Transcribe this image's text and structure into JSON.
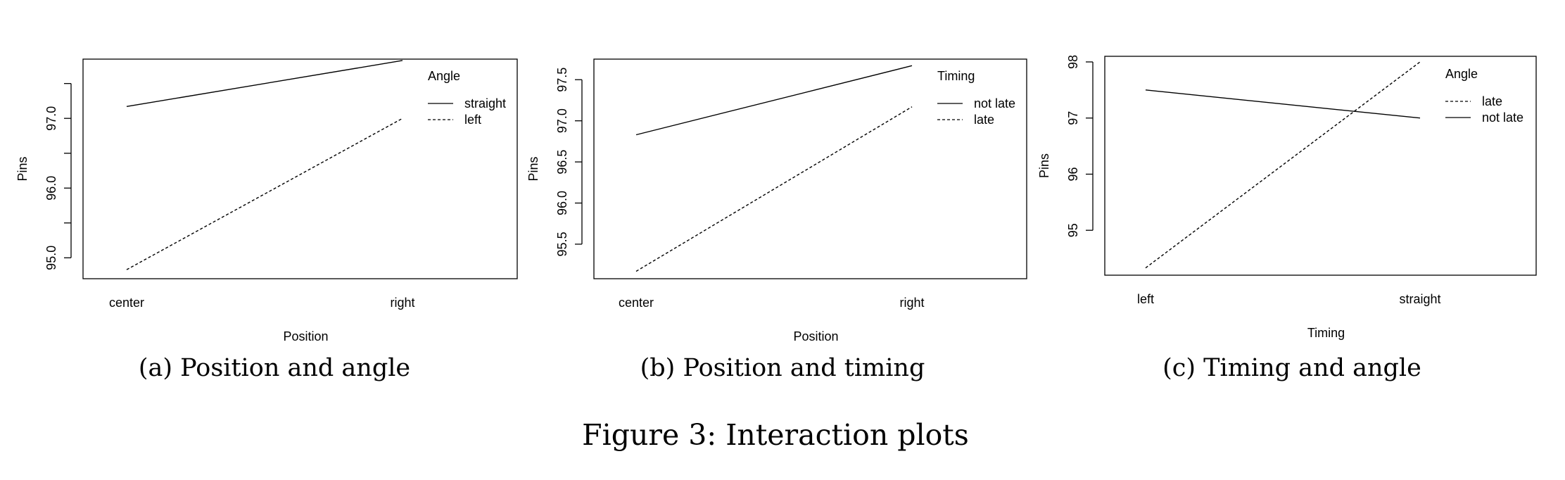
{
  "figure_caption": "Figure 3: Interaction plots",
  "chart_data": [
    {
      "type": "line",
      "caption": "(a) Position and angle",
      "xlabel": "Position",
      "ylabel": "Pins",
      "categories": [
        "center",
        "right"
      ],
      "ylim": [
        94.7,
        97.85
      ],
      "yticks": [
        95.0,
        96.0,
        97.0
      ],
      "ytick_labels": [
        "95.0",
        "96.0",
        "97.0"
      ],
      "yticks_minor": [
        95.5,
        96.5,
        97.5
      ],
      "legend_title": "Angle",
      "legend_position": "top-right",
      "series": [
        {
          "name": "straight",
          "style": "solid",
          "values": [
            97.17,
            97.83
          ]
        },
        {
          "name": "left",
          "style": "dashed",
          "values": [
            94.83,
            97.0
          ]
        }
      ]
    },
    {
      "type": "line",
      "caption": "(b) Position and timing",
      "xlabel": "Position",
      "ylabel": "Pins",
      "categories": [
        "center",
        "right"
      ],
      "ylim": [
        95.08,
        97.75
      ],
      "yticks": [
        95.5,
        96.0,
        96.5,
        97.0,
        97.5
      ],
      "ytick_labels": [
        "95.5",
        "96.0",
        "96.5",
        "97.0",
        "97.5"
      ],
      "yticks_minor": [],
      "legend_title": "Timing",
      "legend_position": "top-right",
      "series": [
        {
          "name": "not late",
          "style": "solid",
          "values": [
            96.83,
            97.67
          ]
        },
        {
          "name": "late",
          "style": "dashed",
          "values": [
            95.17,
            97.17
          ]
        }
      ]
    },
    {
      "type": "line",
      "caption": "(c) Timing and angle",
      "xlabel": "Timing",
      "ylabel": "Pins",
      "categories": [
        "left",
        "straight"
      ],
      "ylim": [
        94.2,
        98.1
      ],
      "yticks": [
        95,
        96,
        97,
        98
      ],
      "ytick_labels": [
        "95",
        "96",
        "97",
        "98"
      ],
      "yticks_minor": [],
      "legend_title": "Angle",
      "legend_position": "top-right",
      "series": [
        {
          "name": "late",
          "style": "dashed",
          "values": [
            94.33,
            98.0
          ]
        },
        {
          "name": "not late",
          "style": "solid",
          "values": [
            97.5,
            97.0
          ]
        }
      ]
    }
  ]
}
